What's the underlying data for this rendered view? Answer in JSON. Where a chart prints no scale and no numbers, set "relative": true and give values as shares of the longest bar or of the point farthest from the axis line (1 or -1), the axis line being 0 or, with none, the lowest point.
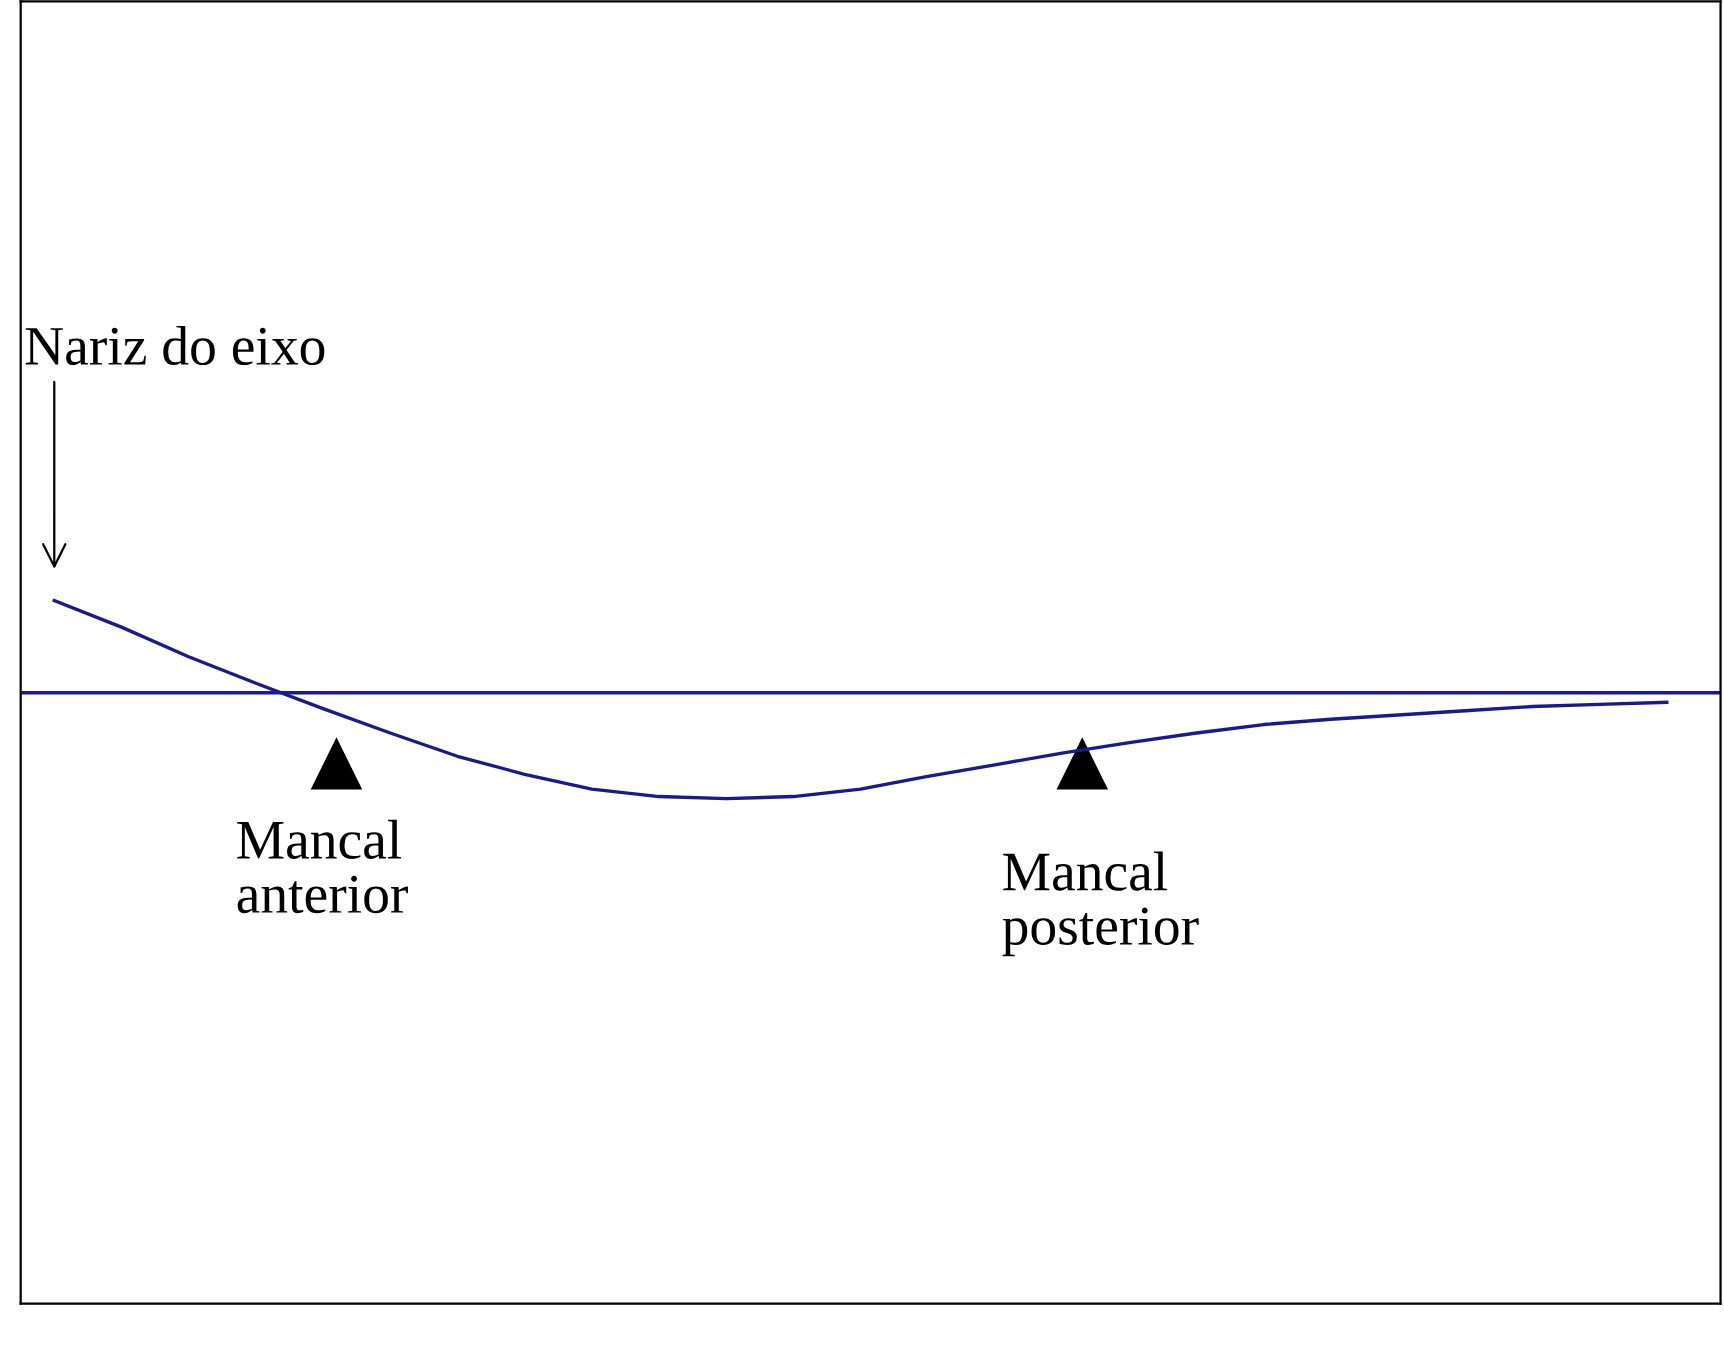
{
  "chart_data": {
    "type": "line",
    "relative": true,
    "categories": [
      null,
      null,
      null,
      null,
      null,
      null,
      null,
      null,
      null,
      null,
      null,
      null,
      null,
      null,
      null,
      null,
      null,
      null,
      null,
      null,
      null,
      null,
      null,
      null,
      null
    ],
    "series": [
      {
        "color": "#1a1a8c",
        "values": [
          0.87,
          0.62,
          0.34,
          0.09,
          -0.15,
          -0.38,
          -0.6,
          -0.77,
          -0.91,
          -0.98,
          -1.0,
          -0.98,
          -0.91,
          -0.79,
          -0.68,
          -0.57,
          -0.47,
          -0.38,
          -0.3,
          -0.25,
          -0.21,
          -0.17,
          -0.13,
          -0.11,
          -0.09
        ]
      }
    ],
    "ref_lines": [
      {
        "axis": "y",
        "value": 0,
        "color": "#1a1a8c"
      }
    ],
    "annotations": [
      "Nariz do eixo",
      "Mancal anterior",
      "Mancal posterior"
    ],
    "legend": false,
    "marker": "none",
    "line_style": "solid"
  }
}
